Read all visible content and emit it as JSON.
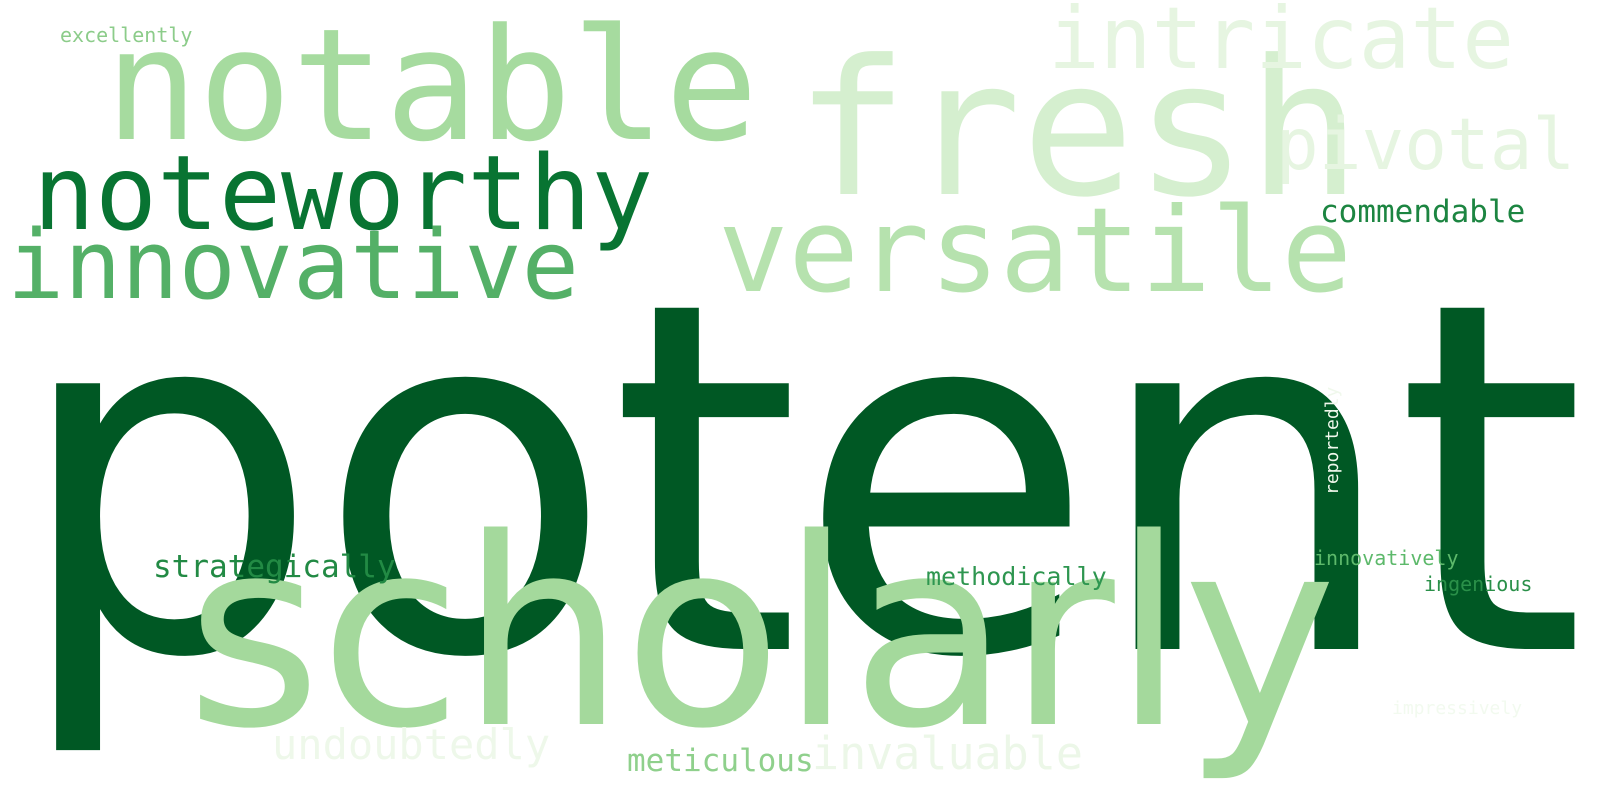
{
  "words": [
    {
      "text": "potent",
      "color": "#005824"
    },
    {
      "text": "scholarly",
      "color": "#a4d99c"
    },
    {
      "text": "fresh",
      "color": "#d5efcf"
    },
    {
      "text": "notable",
      "color": "#a6db9f"
    },
    {
      "text": "intricate",
      "color": "#e6f5e1"
    },
    {
      "text": "noteworthy",
      "color": "#087432"
    },
    {
      "text": "versatile",
      "color": "#b6e2ae"
    },
    {
      "text": "pivotal",
      "color": "#e6f5e1"
    },
    {
      "text": "innovative",
      "color": "#54b067"
    },
    {
      "text": "commendable",
      "color": "#1c8541"
    },
    {
      "text": "excellently",
      "color": "#8ccc8a"
    },
    {
      "text": "strategically",
      "color": "#228a44"
    },
    {
      "text": "methodically",
      "color": "#2e9650"
    },
    {
      "text": "innovatively",
      "color": "#5db96b"
    },
    {
      "text": "ingenious",
      "color": "#2a9049"
    },
    {
      "text": "reportedly",
      "color": "#f0f8ec"
    },
    {
      "text": "undoubtedly",
      "color": "#eef8ea"
    },
    {
      "text": "meticulous",
      "color": "#8fd08c"
    },
    {
      "text": "invaluable",
      "color": "#ecf7e8"
    },
    {
      "text": "impressively",
      "color": "#f2faef"
    }
  ]
}
